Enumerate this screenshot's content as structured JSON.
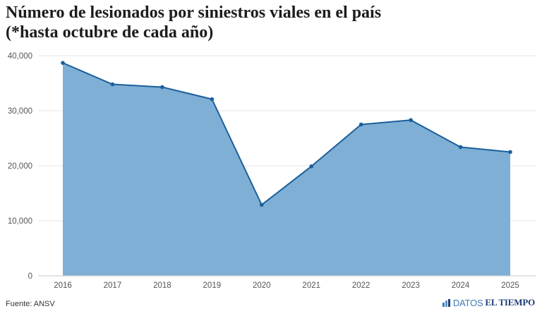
{
  "title_line1": "Número de lesionados por siniestros viales en el país",
  "title_line2": "(*hasta octubre de cada año)",
  "source": "Fuente: ANSV",
  "logo": {
    "part1": "DATOS",
    "part2": "EL TIEMPO",
    "icon": "datos-logo-icon"
  },
  "colors": {
    "area": "#7fafd4",
    "line": "#1a5f9c",
    "grid": "#e6e6e6",
    "axis": "#c8c8c8"
  },
  "chart_data": {
    "type": "area",
    "title": "Número de lesionados por siniestros viales en el país (*hasta octubre de cada año)",
    "xlabel": "",
    "ylabel": "",
    "x": [
      "2016",
      "2017",
      "2018",
      "2019",
      "2020",
      "2021",
      "2022",
      "2023",
      "2024",
      "2025"
    ],
    "values": [
      38700,
      34800,
      34300,
      32100,
      12900,
      19900,
      27500,
      28300,
      23400,
      22500
    ],
    "ylim": [
      0,
      40000
    ],
    "yticks": [
      0,
      10000,
      20000,
      30000,
      40000
    ],
    "ytick_labels": [
      "0",
      "10,000",
      "20,000",
      "30,000",
      "40,000"
    ],
    "grid": true,
    "markers": true
  }
}
